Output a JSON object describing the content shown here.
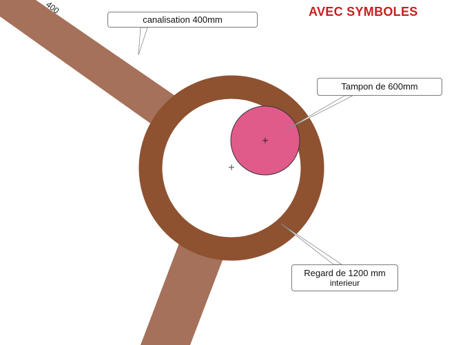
{
  "title": "AVEC SYMBOLES",
  "pipe_label": "400",
  "callouts": {
    "canalisation": "canalisation 400mm",
    "tampon": "Tampon de 600mm",
    "regard_line1": "Regard de 1200 mm",
    "regard_line2": "interieur"
  },
  "colors": {
    "pipe": "#a5715a",
    "regard_ring": "#8e5231",
    "tampon_fill": "#e05a8a",
    "title": "#c81e1e"
  }
}
